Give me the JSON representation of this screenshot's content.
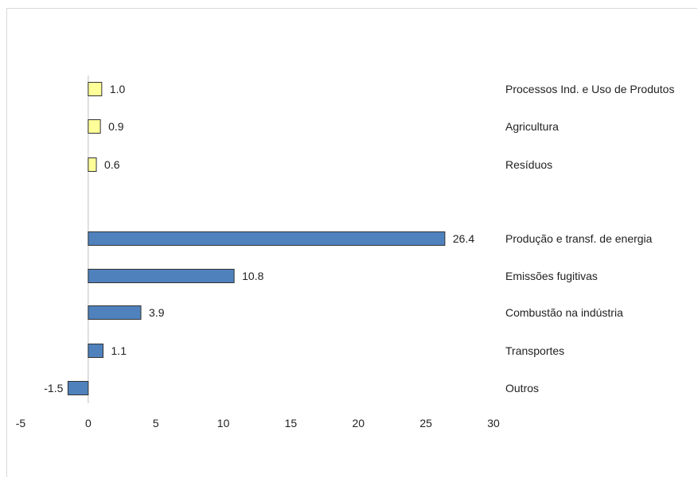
{
  "chart_data": {
    "type": "bar",
    "orientation": "horizontal",
    "title": "",
    "xlabel": "",
    "ylabel": "",
    "xlim": [
      -5,
      30
    ],
    "xticks": [
      -5,
      0,
      5,
      10,
      15,
      20,
      25,
      30
    ],
    "grid": false,
    "categories": [
      "Processos Ind. e Uso de Produtos",
      "Agricultura",
      "Resíduos",
      "Produção e transf. de energia",
      "Emissões fugitivas",
      "Combustão na indústria",
      "Transportes",
      "Outros"
    ],
    "values": [
      1.0,
      0.9,
      0.6,
      26.4,
      10.8,
      3.9,
      1.1,
      -1.5
    ],
    "value_labels": [
      "1.0",
      "0.9",
      "0.6",
      "26.4",
      "10.8",
      "3.9",
      "1.1",
      "-1.5"
    ],
    "groups": [
      "other",
      "other",
      "other",
      "energy",
      "energy",
      "energy",
      "energy",
      "energy"
    ],
    "colors": {
      "energy": "#4f81bd",
      "other": "#ffff99",
      "bar_border": "#333333",
      "axis": "#bfbfbf"
    }
  }
}
